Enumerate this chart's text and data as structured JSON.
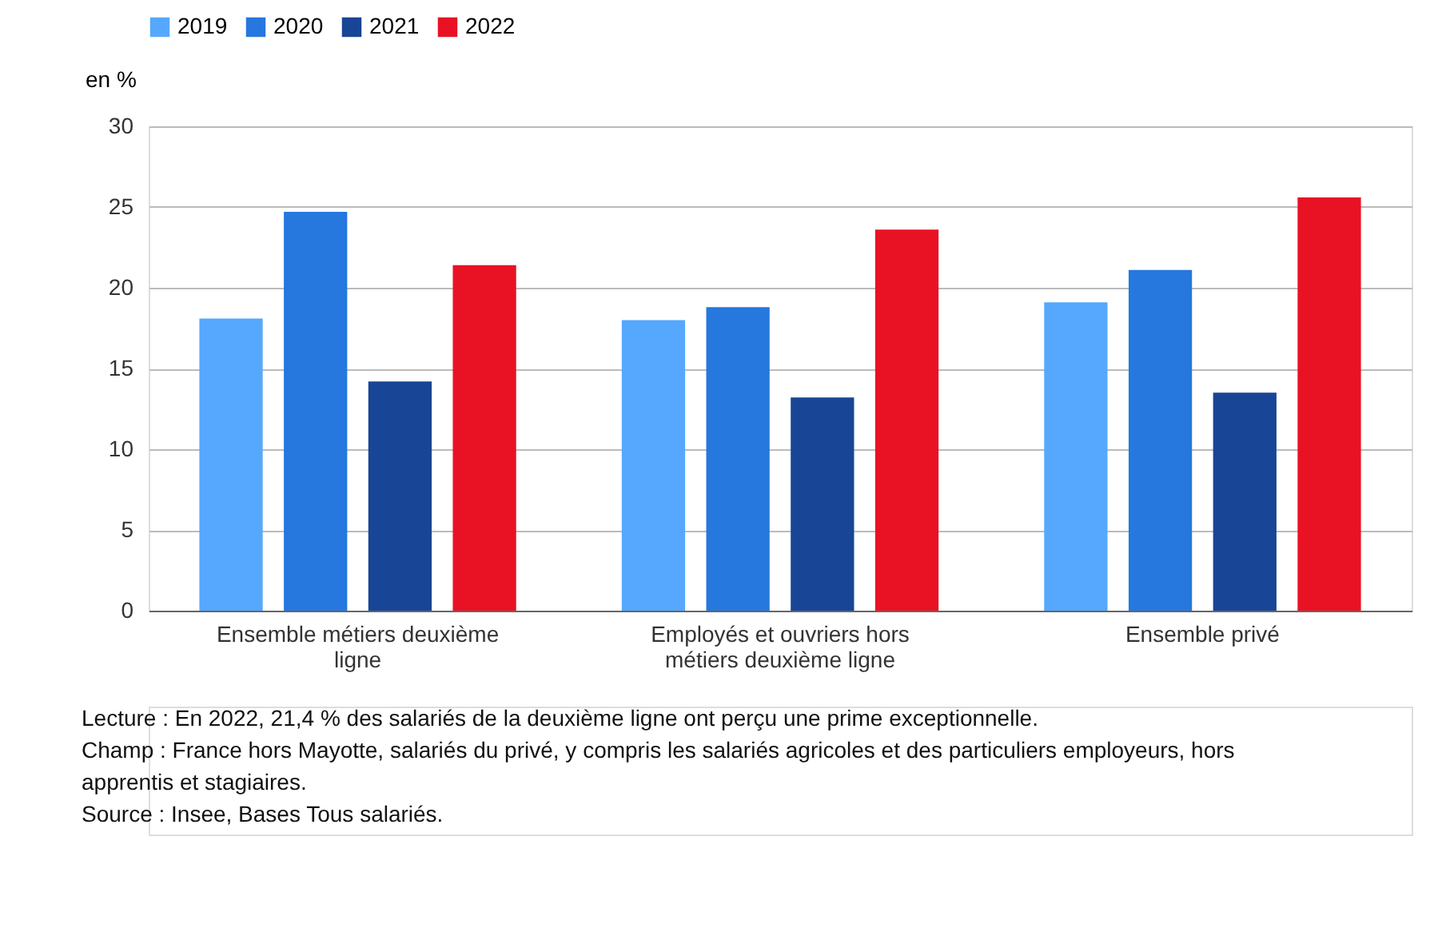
{
  "chart_data": {
    "type": "bar",
    "ylabel": "en %",
    "categories": [
      "Ensemble métiers deuxième ligne",
      "Employés et ouvriers hors métiers deuxième ligne",
      "Ensemble privé"
    ],
    "series": [
      {
        "name": "2019",
        "color": "#55a8fd",
        "values": [
          18.1,
          18.0,
          19.1
        ]
      },
      {
        "name": "2020",
        "color": "#2677de",
        "values": [
          24.7,
          18.8,
          21.1
        ]
      },
      {
        "name": "2021",
        "color": "#184595",
        "values": [
          14.2,
          13.2,
          13.5
        ]
      },
      {
        "name": "2022",
        "color": "#e81224",
        "values": [
          21.4,
          23.6,
          25.6
        ]
      }
    ],
    "ylim": [
      0,
      30
    ],
    "yticks": [
      0,
      5,
      10,
      15,
      20,
      25,
      30
    ],
    "grid": "y",
    "legend": "top",
    "annotations": [
      "Lecture : En 2022, 21,4 % des salariés de la deuxième ligne ont perçu une prime exceptionnelle.",
      "Champ : France hors Mayotte, salariés du privé, y compris les salariés agricoles et des particuliers employeurs, hors apprentis et stagiaires.",
      "Source : Insee, Bases Tous salariés."
    ]
  }
}
